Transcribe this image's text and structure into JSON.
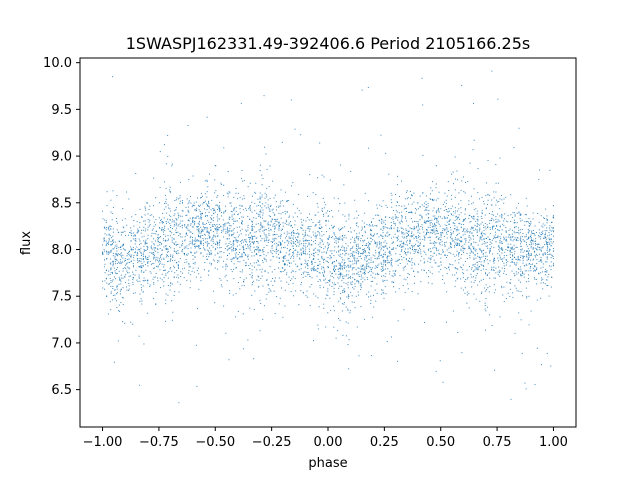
{
  "chart_data": {
    "type": "scatter",
    "title": "1SWASPJ162331.49-392406.6 Period 2105166.25s",
    "xlabel": "phase",
    "ylabel": "flux",
    "xlim": [
      -1.1,
      1.1
    ],
    "ylim": [
      6.1,
      10.05
    ],
    "x_ticks": [
      -1.0,
      -0.75,
      -0.5,
      -0.25,
      0.0,
      0.25,
      0.5,
      0.75,
      1.0
    ],
    "x_tick_labels": [
      "−1.00",
      "−0.75",
      "−0.50",
      "−0.25",
      "0.00",
      "0.25",
      "0.50",
      "0.75",
      "1.00"
    ],
    "y_ticks": [
      6.5,
      7.0,
      7.5,
      8.0,
      8.5,
      9.0,
      9.5,
      10.0
    ],
    "y_tick_labels": [
      "6.5",
      "7.0",
      "7.5",
      "8.0",
      "8.5",
      "9.0",
      "9.5",
      "10.0"
    ],
    "grid": false,
    "marker_color": "#1f77b4",
    "phase_range": [
      -1.0,
      1.0
    ],
    "series": [
      {
        "name": "",
        "note_flux_center": 8.0,
        "profile": {
          "phase": [
            -1.0,
            -0.95,
            -0.9,
            -0.85,
            -0.8,
            -0.75,
            -0.7,
            -0.65,
            -0.6,
            -0.55,
            -0.5,
            -0.45,
            -0.4,
            -0.35,
            -0.3,
            -0.25,
            -0.2,
            -0.15,
            -0.1,
            -0.05,
            0.0,
            0.05,
            0.1,
            0.15,
            0.2,
            0.25,
            0.3,
            0.35,
            0.4,
            0.45,
            0.5,
            0.55,
            0.6,
            0.65,
            0.7,
            0.75,
            0.8,
            0.85,
            0.9,
            0.95,
            1.0
          ],
          "flux_center": [
            8.0,
            7.9,
            7.9,
            7.95,
            8.0,
            8.0,
            8.1,
            8.1,
            8.15,
            8.2,
            8.2,
            8.15,
            8.1,
            8.1,
            8.15,
            8.15,
            8.1,
            8.05,
            8.0,
            8.0,
            7.9,
            7.85,
            7.85,
            7.9,
            7.95,
            8.0,
            8.05,
            8.1,
            8.15,
            8.2,
            8.2,
            8.15,
            8.1,
            8.05,
            8.1,
            8.1,
            8.05,
            8.0,
            8.0,
            8.0,
            8.0
          ],
          "flux_spread": [
            0.3,
            0.4,
            0.35,
            0.3,
            0.3,
            0.3,
            0.45,
            0.35,
            0.3,
            0.3,
            0.3,
            0.35,
            0.35,
            0.3,
            0.45,
            0.45,
            0.35,
            0.35,
            0.3,
            0.35,
            0.4,
            0.35,
            0.35,
            0.3,
            0.3,
            0.35,
            0.45,
            0.35,
            0.3,
            0.3,
            0.3,
            0.35,
            0.35,
            0.35,
            0.45,
            0.4,
            0.35,
            0.35,
            0.3,
            0.3,
            0.3
          ]
        }
      }
    ]
  }
}
